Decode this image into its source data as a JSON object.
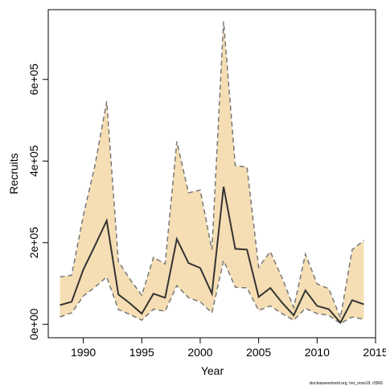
{
  "chart_data": {
    "type": "line",
    "x_label": "Year",
    "y_label": "Recruits",
    "footer": "stockassessment.org, her_noss19, r5565",
    "x": [
      1988,
      1989,
      1990,
      1991,
      1992,
      1993,
      1994,
      1995,
      1996,
      1997,
      1998,
      1999,
      2000,
      2001,
      2002,
      2003,
      2004,
      2005,
      2006,
      2007,
      2008,
      2009,
      2010,
      2011,
      2012,
      2013,
      2014
    ],
    "values": [
      47000,
      55000,
      134000,
      193000,
      254000,
      73000,
      51000,
      26000,
      75000,
      65000,
      209000,
      150000,
      138000,
      75000,
      337000,
      185000,
      183000,
      67000,
      89000,
      53000,
      22000,
      83000,
      45000,
      37000,
      4000,
      59000,
      49000
    ],
    "upper": [
      116000,
      120000,
      266000,
      390000,
      546000,
      154000,
      110000,
      71000,
      164000,
      148000,
      448000,
      322000,
      329000,
      183000,
      742000,
      389000,
      385000,
      140000,
      178000,
      114000,
      41000,
      172000,
      99000,
      87000,
      16000,
      183000,
      205000
    ],
    "lower": [
      18000,
      28000,
      69000,
      91000,
      116000,
      36000,
      24000,
      10000,
      37000,
      32000,
      95000,
      65000,
      55000,
      28000,
      156000,
      91000,
      89000,
      34000,
      45000,
      26000,
      10000,
      39000,
      26000,
      22000,
      2000,
      18000,
      12000
    ],
    "color": "#333333",
    "band_color": "#f5deb3",
    "band_line_color": "#777777",
    "xlim": [
      1987,
      2015
    ],
    "ylim": [
      -33000,
      771000
    ],
    "xticks": [
      1990,
      1995,
      2000,
      2005,
      2010,
      2015
    ],
    "yticks": [
      {
        "value": 0,
        "label": "0e+00"
      },
      {
        "value": 200000,
        "label": "2e+05"
      },
      {
        "value": 400000,
        "label": "4e+05"
      },
      {
        "value": 600000,
        "label": "6e+05"
      }
    ]
  }
}
